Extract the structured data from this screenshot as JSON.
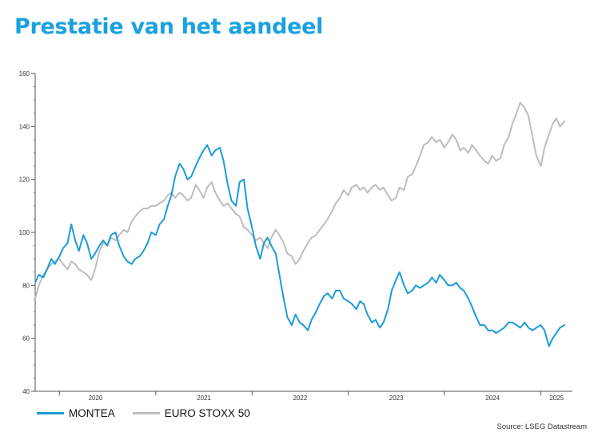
{
  "title": "Prestatie van het aandeel",
  "source": "Source: LSEG Datastream",
  "colors": {
    "montea": "#1b9cd8",
    "eurostoxx": "#bdbdbd",
    "axis": "#555555"
  },
  "chart_data": {
    "type": "line",
    "title": "Prestatie van het aandeel",
    "xlabel": "",
    "ylabel": "",
    "ylim": [
      40,
      160
    ],
    "yticks": [
      40,
      60,
      80,
      100,
      120,
      140,
      160
    ],
    "xlim": [
      "2019-10-01",
      "2025-05-01"
    ],
    "xtick_labels": [
      {
        "label": "2020",
        "date": "2020-01-01"
      },
      {
        "label": "2021",
        "date": "2021-01-01"
      },
      {
        "label": "2022",
        "date": "2022-01-01"
      },
      {
        "label": "2023",
        "date": "2023-01-01"
      },
      {
        "label": "2024",
        "date": "2024-01-01"
      },
      {
        "label": "2025",
        "date": "2025-01-01"
      }
    ],
    "grid": false,
    "legend": "bottom-left",
    "series": [
      {
        "name": "MONTEA",
        "color": "#1b9cd8",
        "points": [
          [
            "2019-10-01",
            81
          ],
          [
            "2019-10-15",
            84
          ],
          [
            "2019-11-01",
            83
          ],
          [
            "2019-11-15",
            86
          ],
          [
            "2019-12-01",
            90
          ],
          [
            "2019-12-15",
            88
          ],
          [
            "2020-01-01",
            91
          ],
          [
            "2020-01-15",
            94
          ],
          [
            "2020-02-01",
            96
          ],
          [
            "2020-02-15",
            103
          ],
          [
            "2020-03-01",
            97
          ],
          [
            "2020-03-15",
            93
          ],
          [
            "2020-04-01",
            99
          ],
          [
            "2020-04-15",
            96
          ],
          [
            "2020-05-01",
            90
          ],
          [
            "2020-05-15",
            92
          ],
          [
            "2020-06-01",
            95
          ],
          [
            "2020-06-15",
            97
          ],
          [
            "2020-07-01",
            95
          ],
          [
            "2020-07-15",
            99
          ],
          [
            "2020-08-01",
            100
          ],
          [
            "2020-08-15",
            95
          ],
          [
            "2020-09-01",
            91
          ],
          [
            "2020-09-15",
            89
          ],
          [
            "2020-10-01",
            88
          ],
          [
            "2020-10-15",
            90
          ],
          [
            "2020-11-01",
            91
          ],
          [
            "2020-11-15",
            93
          ],
          [
            "2020-12-01",
            96
          ],
          [
            "2020-12-15",
            100
          ],
          [
            "2021-01-01",
            99
          ],
          [
            "2021-01-15",
            103
          ],
          [
            "2021-02-01",
            105
          ],
          [
            "2021-02-15",
            110
          ],
          [
            "2021-03-01",
            114
          ],
          [
            "2021-03-15",
            121
          ],
          [
            "2021-04-01",
            126
          ],
          [
            "2021-04-15",
            124
          ],
          [
            "2021-05-01",
            120
          ],
          [
            "2021-05-15",
            121
          ],
          [
            "2021-06-01",
            125
          ],
          [
            "2021-06-15",
            128
          ],
          [
            "2021-07-01",
            131
          ],
          [
            "2021-07-15",
            133
          ],
          [
            "2021-08-01",
            129
          ],
          [
            "2021-08-15",
            131
          ],
          [
            "2021-09-01",
            132
          ],
          [
            "2021-09-15",
            127
          ],
          [
            "2021-10-01",
            118
          ],
          [
            "2021-10-15",
            112
          ],
          [
            "2021-11-01",
            110
          ],
          [
            "2021-11-15",
            119
          ],
          [
            "2021-12-01",
            120
          ],
          [
            "2021-12-15",
            109
          ],
          [
            "2022-01-01",
            102
          ],
          [
            "2022-01-15",
            95
          ],
          [
            "2022-02-01",
            90
          ],
          [
            "2022-02-15",
            96
          ],
          [
            "2022-03-01",
            98
          ],
          [
            "2022-03-15",
            95
          ],
          [
            "2022-04-01",
            92
          ],
          [
            "2022-04-15",
            84
          ],
          [
            "2022-05-01",
            75
          ],
          [
            "2022-05-15",
            68
          ],
          [
            "2022-06-01",
            65
          ],
          [
            "2022-06-15",
            69
          ],
          [
            "2022-07-01",
            66
          ],
          [
            "2022-07-15",
            65
          ],
          [
            "2022-08-01",
            63
          ],
          [
            "2022-08-15",
            67
          ],
          [
            "2022-09-01",
            70
          ],
          [
            "2022-09-15",
            73
          ],
          [
            "2022-10-01",
            76
          ],
          [
            "2022-10-15",
            77
          ],
          [
            "2022-11-01",
            75
          ],
          [
            "2022-11-15",
            78
          ],
          [
            "2022-12-01",
            78
          ],
          [
            "2022-12-15",
            75
          ],
          [
            "2023-01-01",
            74
          ],
          [
            "2023-01-15",
            73
          ],
          [
            "2023-02-01",
            71
          ],
          [
            "2023-02-15",
            74
          ],
          [
            "2023-03-01",
            73
          ],
          [
            "2023-03-15",
            69
          ],
          [
            "2023-04-01",
            66
          ],
          [
            "2023-04-15",
            67
          ],
          [
            "2023-05-01",
            64
          ],
          [
            "2023-05-15",
            66
          ],
          [
            "2023-06-01",
            71
          ],
          [
            "2023-06-15",
            78
          ],
          [
            "2023-07-01",
            82
          ],
          [
            "2023-07-15",
            85
          ],
          [
            "2023-08-01",
            80
          ],
          [
            "2023-08-15",
            77
          ],
          [
            "2023-09-01",
            78
          ],
          [
            "2023-09-15",
            80
          ],
          [
            "2023-10-01",
            79
          ],
          [
            "2023-10-15",
            80
          ],
          [
            "2023-11-01",
            81
          ],
          [
            "2023-11-15",
            83
          ],
          [
            "2023-12-01",
            81
          ],
          [
            "2023-12-15",
            84
          ],
          [
            "2024-01-01",
            82
          ],
          [
            "2024-01-15",
            80
          ],
          [
            "2024-02-01",
            80
          ],
          [
            "2024-02-15",
            81
          ],
          [
            "2024-03-01",
            79
          ],
          [
            "2024-03-15",
            78
          ],
          [
            "2024-04-01",
            75
          ],
          [
            "2024-04-15",
            72
          ],
          [
            "2024-05-01",
            68
          ],
          [
            "2024-05-15",
            65
          ],
          [
            "2024-06-01",
            65
          ],
          [
            "2024-06-15",
            63
          ],
          [
            "2024-07-01",
            63
          ],
          [
            "2024-07-15",
            62
          ],
          [
            "2024-08-01",
            63
          ],
          [
            "2024-08-15",
            64
          ],
          [
            "2024-09-01",
            66
          ],
          [
            "2024-09-15",
            66
          ],
          [
            "2024-10-01",
            65
          ],
          [
            "2024-10-15",
            64
          ],
          [
            "2024-11-01",
            66
          ],
          [
            "2024-11-15",
            64
          ],
          [
            "2024-12-01",
            63
          ],
          [
            "2024-12-15",
            64
          ],
          [
            "2025-01-01",
            65
          ],
          [
            "2025-01-15",
            63
          ],
          [
            "2025-02-01",
            57
          ],
          [
            "2025-02-15",
            60
          ],
          [
            "2025-03-01",
            62
          ],
          [
            "2025-03-15",
            64
          ],
          [
            "2025-04-01",
            65
          ]
        ]
      },
      {
        "name": "EURO STOXX 50",
        "color": "#bdbdbd",
        "points": [
          [
            "2019-10-01",
            75
          ],
          [
            "2019-10-15",
            80
          ],
          [
            "2019-11-01",
            84
          ],
          [
            "2019-11-15",
            86
          ],
          [
            "2019-12-01",
            88
          ],
          [
            "2019-12-15",
            89
          ],
          [
            "2020-01-01",
            90
          ],
          [
            "2020-01-15",
            88
          ],
          [
            "2020-02-01",
            86
          ],
          [
            "2020-02-15",
            89
          ],
          [
            "2020-03-01",
            88
          ],
          [
            "2020-03-15",
            86
          ],
          [
            "2020-04-01",
            85
          ],
          [
            "2020-04-15",
            84
          ],
          [
            "2020-05-01",
            82
          ],
          [
            "2020-05-15",
            86
          ],
          [
            "2020-06-01",
            93
          ],
          [
            "2020-06-15",
            96
          ],
          [
            "2020-07-01",
            95
          ],
          [
            "2020-07-15",
            98
          ],
          [
            "2020-08-01",
            97
          ],
          [
            "2020-08-15",
            99
          ],
          [
            "2020-09-01",
            101
          ],
          [
            "2020-09-15",
            100
          ],
          [
            "2020-10-01",
            104
          ],
          [
            "2020-10-15",
            106
          ],
          [
            "2020-11-01",
            108
          ],
          [
            "2020-11-15",
            109
          ],
          [
            "2020-12-01",
            109
          ],
          [
            "2020-12-15",
            110
          ],
          [
            "2021-01-01",
            110
          ],
          [
            "2021-01-15",
            111
          ],
          [
            "2021-02-01",
            112
          ],
          [
            "2021-02-15",
            114
          ],
          [
            "2021-03-01",
            115
          ],
          [
            "2021-03-15",
            113
          ],
          [
            "2021-04-01",
            115
          ],
          [
            "2021-04-15",
            114
          ],
          [
            "2021-05-01",
            112
          ],
          [
            "2021-05-15",
            113
          ],
          [
            "2021-06-01",
            118
          ],
          [
            "2021-06-15",
            116
          ],
          [
            "2021-07-01",
            113
          ],
          [
            "2021-07-15",
            117
          ],
          [
            "2021-08-01",
            119
          ],
          [
            "2021-08-15",
            115
          ],
          [
            "2021-09-01",
            112
          ],
          [
            "2021-09-15",
            110
          ],
          [
            "2021-10-01",
            111
          ],
          [
            "2021-10-15",
            109
          ],
          [
            "2021-11-01",
            107
          ],
          [
            "2021-11-15",
            106
          ],
          [
            "2021-12-01",
            102
          ],
          [
            "2021-12-15",
            101
          ],
          [
            "2022-01-01",
            99
          ],
          [
            "2022-01-15",
            97
          ],
          [
            "2022-02-01",
            98
          ],
          [
            "2022-02-15",
            96
          ],
          [
            "2022-03-01",
            94
          ],
          [
            "2022-03-15",
            98
          ],
          [
            "2022-04-01",
            101
          ],
          [
            "2022-04-15",
            99
          ],
          [
            "2022-05-01",
            96
          ],
          [
            "2022-05-15",
            92
          ],
          [
            "2022-06-01",
            91
          ],
          [
            "2022-06-15",
            88
          ],
          [
            "2022-07-01",
            90
          ],
          [
            "2022-07-15",
            93
          ],
          [
            "2022-08-01",
            96
          ],
          [
            "2022-08-15",
            98
          ],
          [
            "2022-09-01",
            99
          ],
          [
            "2022-09-15",
            101
          ],
          [
            "2022-10-01",
            103
          ],
          [
            "2022-10-15",
            105
          ],
          [
            "2022-11-01",
            108
          ],
          [
            "2022-11-15",
            111
          ],
          [
            "2022-12-01",
            113
          ],
          [
            "2022-12-15",
            116
          ],
          [
            "2023-01-01",
            114
          ],
          [
            "2023-01-15",
            117
          ],
          [
            "2023-02-01",
            118
          ],
          [
            "2023-02-15",
            116
          ],
          [
            "2023-03-01",
            117
          ],
          [
            "2023-03-15",
            115
          ],
          [
            "2023-04-01",
            117
          ],
          [
            "2023-04-15",
            118
          ],
          [
            "2023-05-01",
            116
          ],
          [
            "2023-05-15",
            117
          ],
          [
            "2023-06-01",
            114
          ],
          [
            "2023-06-15",
            112
          ],
          [
            "2023-07-01",
            113
          ],
          [
            "2023-07-15",
            117
          ],
          [
            "2023-08-01",
            116
          ],
          [
            "2023-08-15",
            121
          ],
          [
            "2023-09-01",
            122
          ],
          [
            "2023-09-15",
            125
          ],
          [
            "2023-10-01",
            129
          ],
          [
            "2023-10-15",
            133
          ],
          [
            "2023-11-01",
            134
          ],
          [
            "2023-11-15",
            136
          ],
          [
            "2023-12-01",
            134
          ],
          [
            "2023-12-15",
            135
          ],
          [
            "2024-01-01",
            132
          ],
          [
            "2024-01-15",
            134
          ],
          [
            "2024-02-01",
            137
          ],
          [
            "2024-02-15",
            135
          ],
          [
            "2024-03-01",
            131
          ],
          [
            "2024-03-15",
            132
          ],
          [
            "2024-04-01",
            130
          ],
          [
            "2024-04-15",
            133
          ],
          [
            "2024-05-01",
            131
          ],
          [
            "2024-05-15",
            129
          ],
          [
            "2024-06-01",
            127
          ],
          [
            "2024-06-15",
            126
          ],
          [
            "2024-07-01",
            129
          ],
          [
            "2024-07-15",
            127
          ],
          [
            "2024-08-01",
            128
          ],
          [
            "2024-08-15",
            133
          ],
          [
            "2024-09-01",
            136
          ],
          [
            "2024-09-15",
            141
          ],
          [
            "2024-10-01",
            145
          ],
          [
            "2024-10-15",
            149
          ],
          [
            "2024-11-01",
            147
          ],
          [
            "2024-11-15",
            144
          ],
          [
            "2024-12-01",
            136
          ],
          [
            "2024-12-15",
            129
          ],
          [
            "2025-01-01",
            125
          ],
          [
            "2025-01-15",
            132
          ],
          [
            "2025-02-01",
            137
          ],
          [
            "2025-02-15",
            141
          ],
          [
            "2025-03-01",
            143
          ],
          [
            "2025-03-15",
            140
          ],
          [
            "2025-04-01",
            142
          ]
        ]
      }
    ]
  }
}
